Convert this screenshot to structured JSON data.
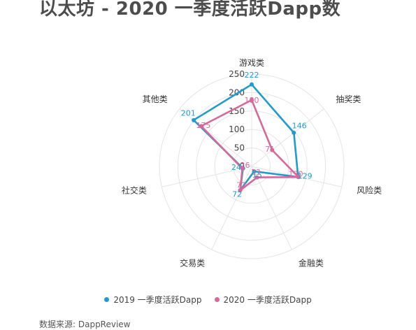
{
  "title": "以太坊 - 2020 一季度活跃Dapp数",
  "source": "数据来源: DappReview",
  "chart_data": {
    "type": "radar",
    "categories": [
      "游戏类",
      "抽奖类",
      "风险类",
      "金融类",
      "交易类",
      "社交类",
      "其他类"
    ],
    "radial_ticks": [
      0,
      50,
      100,
      150,
      200,
      250
    ],
    "rmax": 250,
    "series": [
      {
        "name": "2019 一季度活跃Dapp",
        "values": [
          222,
          146,
          129,
          15,
          72,
          24,
          201
        ],
        "color": "#1f9bce"
      },
      {
        "name": "2020 一季度活跃Dapp",
        "values": [
          180,
          71,
          130,
          33,
          72,
          26,
          175
        ],
        "color": "#d9689a"
      }
    ]
  }
}
